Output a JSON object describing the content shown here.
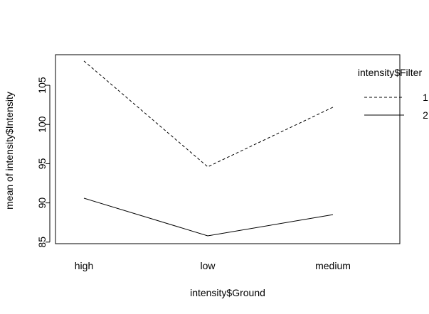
{
  "chart_data": {
    "type": "line",
    "categories": [
      "high",
      "low",
      "medium"
    ],
    "series": [
      {
        "name": "1",
        "values": [
          108.1,
          94.6,
          102.2
        ],
        "dash": "dashed",
        "color": "#000000"
      },
      {
        "name": "2",
        "values": [
          90.6,
          85.8,
          88.5
        ],
        "dash": "solid",
        "color": "#000000"
      }
    ],
    "title": "",
    "xlabel": "intensity$Ground",
    "ylabel": "mean of  intensity$Intensity",
    "ylim": [
      84.8,
      108.9
    ],
    "yticks": [
      85,
      90,
      95,
      100,
      105
    ],
    "legend": {
      "title": "intensity$Filter",
      "position": "top-right",
      "box": false
    },
    "grid": false
  }
}
